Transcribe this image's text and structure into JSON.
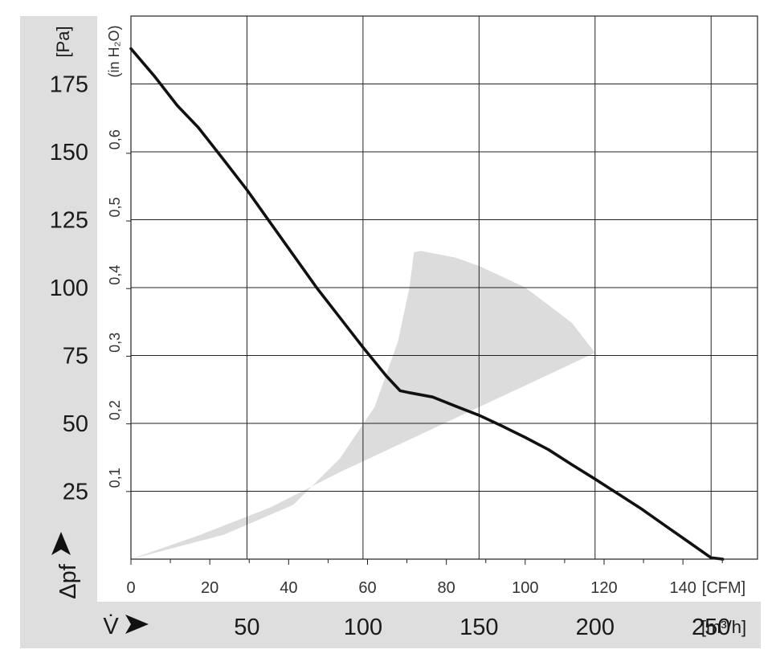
{
  "chart_data": {
    "type": "line",
    "title": "",
    "xlabel": "V̇",
    "ylabel": "Δpf",
    "x_units": [
      "m³/h",
      "CFM"
    ],
    "y_units": [
      "Pa",
      "in H2O"
    ],
    "x_axis_m3h": {
      "range": [
        0,
        270
      ],
      "ticks": [
        50,
        100,
        150,
        200,
        250
      ],
      "tick_labels": [
        "50",
        "100",
        "150",
        "200",
        "250"
      ],
      "unit_label": "[m³/h]"
    },
    "x_axis_cfm": {
      "range": [
        0,
        159
      ],
      "ticks": [
        0,
        20,
        40,
        60,
        80,
        100,
        120,
        140
      ],
      "tick_labels": [
        "0",
        "20",
        "40",
        "60",
        "80",
        "100",
        "120",
        "140"
      ],
      "unit_label": "[CFM]"
    },
    "y_axis_pa": {
      "range": [
        0,
        200
      ],
      "ticks": [
        25,
        50,
        75,
        100,
        125,
        150,
        175
      ],
      "tick_labels": [
        "25",
        "50",
        "75",
        "100",
        "125",
        "150",
        "175"
      ],
      "unit_label": "[Pa]"
    },
    "y_axis_inh2o": {
      "ticks": [
        0.1,
        0.2,
        0.3,
        0.4,
        0.5,
        0.6
      ],
      "tick_labels": [
        "0,1",
        "0,2",
        "0,3",
        "0,4",
        "0,5",
        "0,6"
      ],
      "unit_label": "(in H₂O)"
    },
    "grid": true,
    "series": [
      {
        "x_m3h": [
          0,
          10,
          20,
          29,
          40,
          50,
          60,
          70,
          80,
          90,
          100,
          110,
          116,
          120,
          130,
          140,
          150,
          160,
          170,
          180,
          190,
          200,
          210,
          220,
          230,
          240,
          250,
          255
        ],
        "y_pa": [
          188,
          178,
          167,
          159,
          147,
          136,
          124,
          112,
          100,
          89,
          78,
          67.5,
          62,
          61.3,
          59.7,
          56.3,
          53,
          49,
          44.8,
          40.3,
          34.8,
          29.5,
          24,
          18.5,
          12.5,
          6.5,
          0.5,
          0
        ],
        "color": "#111111"
      }
    ],
    "shaded_region": {
      "color": "#dcdcdc",
      "boundary_m3h_pa": [
        [
          0,
          0
        ],
        [
          30,
          9
        ],
        [
          60,
          19
        ],
        [
          90,
          32
        ],
        [
          120,
          44
        ],
        [
          150,
          56
        ],
        [
          180,
          68
        ],
        [
          200,
          76
        ],
        [
          190,
          87
        ],
        [
          170,
          100
        ],
        [
          150,
          108
        ],
        [
          140,
          111
        ],
        [
          125,
          113.5
        ],
        [
          122,
          113
        ],
        [
          120,
          100
        ],
        [
          115,
          80
        ],
        [
          105,
          56
        ],
        [
          90,
          37
        ],
        [
          70,
          20
        ],
        [
          40,
          9
        ],
        [
          0,
          0
        ]
      ]
    }
  }
}
